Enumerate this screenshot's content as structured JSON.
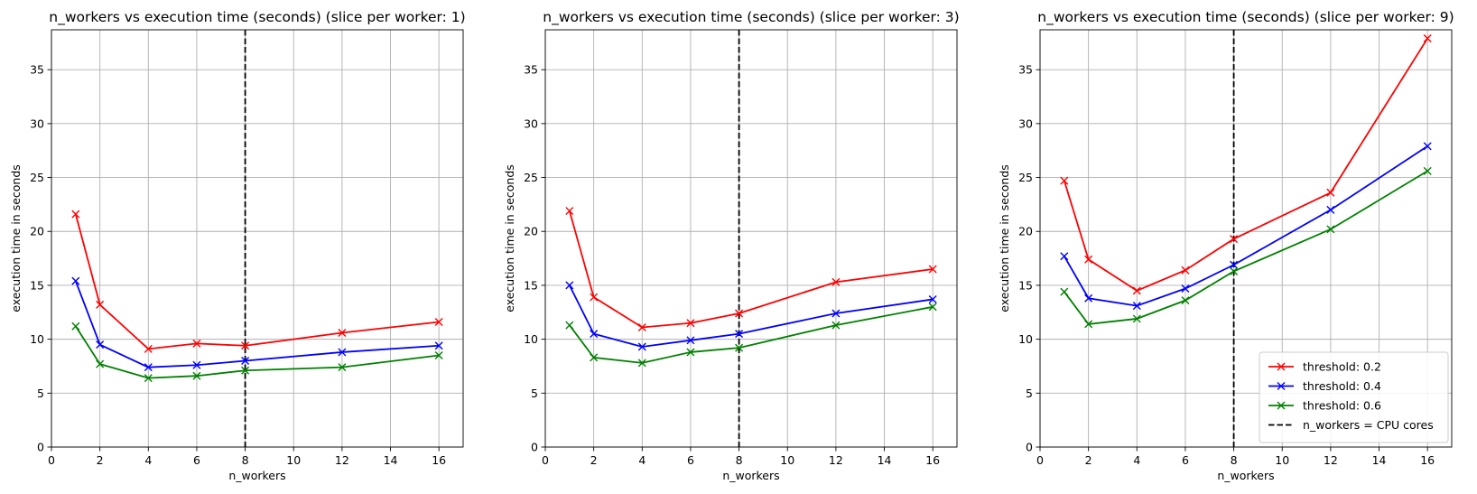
{
  "chart_data": [
    {
      "type": "line",
      "title": "n_workers vs execution time (seconds) (slice per worker: 1)",
      "xlabel": "n_workers",
      "ylabel": "execution time in seconds",
      "x": [
        1,
        2,
        4,
        6,
        8,
        12,
        16
      ],
      "xlim": [
        0,
        17
      ],
      "ylim": [
        0,
        38.7
      ],
      "xticks": [
        0,
        2,
        4,
        6,
        8,
        10,
        12,
        14,
        16
      ],
      "yticks": [
        0,
        5,
        10,
        15,
        20,
        25,
        30,
        35
      ],
      "grid": true,
      "vline": {
        "x": 8
      },
      "series": [
        {
          "name": "threshold: 0.2",
          "color": "#ff0000",
          "values": [
            21.6,
            13.2,
            9.1,
            9.6,
            9.4,
            10.6,
            11.6
          ]
        },
        {
          "name": "threshold: 0.4",
          "color": "#0000ff",
          "values": [
            15.4,
            9.5,
            7.4,
            7.6,
            8.0,
            8.8,
            9.4
          ]
        },
        {
          "name": "threshold: 0.6",
          "color": "#008000",
          "values": [
            11.2,
            7.7,
            6.4,
            6.6,
            7.1,
            7.4,
            8.5
          ]
        }
      ]
    },
    {
      "type": "line",
      "title": "n_workers vs execution time (seconds) (slice per worker: 3)",
      "xlabel": "n_workers",
      "ylabel": "execution time in seconds",
      "x": [
        1,
        2,
        4,
        6,
        8,
        12,
        16
      ],
      "xlim": [
        0,
        17
      ],
      "ylim": [
        0,
        38.7
      ],
      "xticks": [
        0,
        2,
        4,
        6,
        8,
        10,
        12,
        14,
        16
      ],
      "yticks": [
        0,
        5,
        10,
        15,
        20,
        25,
        30,
        35
      ],
      "grid": true,
      "vline": {
        "x": 8
      },
      "series": [
        {
          "name": "threshold: 0.2",
          "color": "#ff0000",
          "values": [
            21.9,
            13.9,
            11.1,
            11.5,
            12.4,
            15.3,
            16.5
          ]
        },
        {
          "name": "threshold: 0.4",
          "color": "#0000ff",
          "values": [
            15.0,
            10.5,
            9.3,
            9.9,
            10.5,
            12.4,
            13.7
          ]
        },
        {
          "name": "threshold: 0.6",
          "color": "#008000",
          "values": [
            11.3,
            8.3,
            7.8,
            8.8,
            9.2,
            11.3,
            13.0
          ]
        }
      ]
    },
    {
      "type": "line",
      "title": "n_workers vs execution time (seconds) (slice per worker: 9)",
      "xlabel": "n_workers",
      "ylabel": "execution time in seconds",
      "x": [
        1,
        2,
        4,
        6,
        8,
        12,
        16
      ],
      "xlim": [
        0,
        17
      ],
      "ylim": [
        0,
        38.7
      ],
      "xticks": [
        0,
        2,
        4,
        6,
        8,
        10,
        12,
        14,
        16
      ],
      "yticks": [
        0,
        5,
        10,
        15,
        20,
        25,
        30,
        35
      ],
      "grid": true,
      "vline": {
        "x": 8
      },
      "legend": {
        "placement": "lower-right",
        "entries": [
          {
            "label": "threshold: 0.2",
            "color": "#ff0000",
            "style": "line-x"
          },
          {
            "label": "threshold: 0.4",
            "color": "#0000ff",
            "style": "line-x"
          },
          {
            "label": "threshold: 0.6",
            "color": "#008000",
            "style": "line-x"
          },
          {
            "label": "n_workers = CPU cores",
            "color": "#000000",
            "style": "dashed"
          }
        ]
      },
      "series": [
        {
          "name": "threshold: 0.2",
          "color": "#ff0000",
          "values": [
            24.7,
            17.4,
            14.5,
            16.4,
            19.3,
            23.6,
            37.9
          ]
        },
        {
          "name": "threshold: 0.4",
          "color": "#0000ff",
          "values": [
            17.7,
            13.8,
            13.1,
            14.7,
            16.9,
            22.0,
            27.9
          ]
        },
        {
          "name": "threshold: 0.6",
          "color": "#008000",
          "values": [
            14.4,
            11.4,
            11.9,
            13.6,
            16.3,
            20.2,
            25.6
          ]
        }
      ]
    }
  ]
}
